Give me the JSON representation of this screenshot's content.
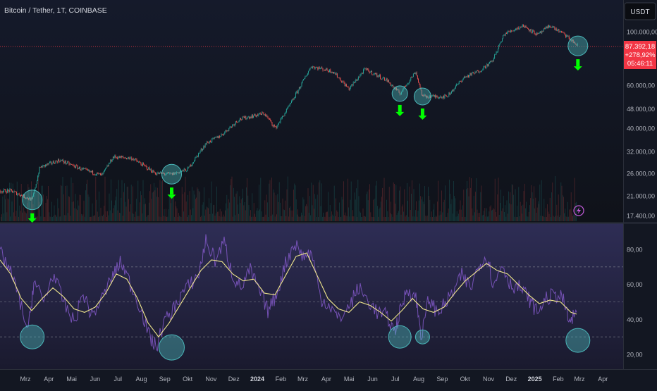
{
  "header": {
    "symbol_line": "Bitcoin / Tether, 1T, COINBASE",
    "currency_badge": "USDT"
  },
  "price_panel": {
    "y_ticks": [
      "100.000,00",
      "60.000,00",
      "48.000,00",
      "40.000,00",
      "32.000,00",
      "26.000,00",
      "21.000,00",
      "17.400,00"
    ],
    "last_price": "87.392,18",
    "change_pct": "+278,92%",
    "countdown": "05:46:11",
    "colors": {
      "up": "#26a69a",
      "down": "#ef5350",
      "price_line": "#f23645",
      "marker": "#00ff00",
      "circle": "#4fc3c4"
    }
  },
  "oscillator_panel": {
    "y_ticks": [
      "80,00",
      "60,00",
      "40,00",
      "20,00"
    ],
    "colors": {
      "fast": "#7e57c2",
      "slow": "#f0e68c",
      "circle": "#4fc3c4"
    }
  },
  "x_axis": {
    "labels": [
      "Mrz",
      "Apr",
      "Mai",
      "Jun",
      "Jul",
      "Aug",
      "Sep",
      "Okt",
      "Nov",
      "Dez",
      "2024",
      "Feb",
      "Mrz",
      "Apr",
      "Mai",
      "Jun",
      "Jul",
      "Aug",
      "Sep",
      "Okt",
      "Nov",
      "Dez",
      "2025",
      "Feb",
      "Mrz",
      "Apr"
    ],
    "bold_labels": [
      "2024",
      "2025"
    ]
  },
  "chart_data": [
    {
      "type": "line",
      "title": "Bitcoin / Tether, 1T, COINBASE",
      "x": [
        "2023-02-10",
        "2023-03-10",
        "2023-03-20",
        "2023-04-15",
        "2023-05-15",
        "2023-06-10",
        "2023-06-25",
        "2023-07-20",
        "2023-08-20",
        "2023-09-10",
        "2023-10-01",
        "2023-10-25",
        "2023-11-15",
        "2023-12-08",
        "2024-01-10",
        "2024-01-25",
        "2024-02-15",
        "2024-03-12",
        "2024-04-10",
        "2024-05-01",
        "2024-05-22",
        "2024-06-20",
        "2024-07-07",
        "2024-07-28",
        "2024-08-06",
        "2024-09-07",
        "2024-09-29",
        "2024-10-20",
        "2024-11-06",
        "2024-11-22",
        "2024-12-17",
        "2025-01-05",
        "2025-01-21",
        "2025-02-10",
        "2025-02-27"
      ],
      "series": [
        {
          "values": [
            22000,
            20200,
            27500,
            29500,
            27000,
            25500,
            30400,
            30000,
            26000,
            25800,
            27000,
            34500,
            37500,
            43500,
            46000,
            40000,
            51000,
            72000,
            68500,
            58000,
            70000,
            63000,
            55500,
            68500,
            54000,
            54000,
            64500,
            69000,
            75500,
            98000,
            106000,
            97000,
            106000,
            97000,
            87392
          ]
        }
      ],
      "ylim": [
        17400,
        112000
      ],
      "log_scale": true,
      "marked_lows": [
        "2023-03-10",
        "2023-09-10",
        "2024-07-07",
        "2024-08-06",
        "2025-02-27"
      ]
    },
    {
      "type": "line",
      "x_range": [
        "2023-02-01",
        "2025-04-15"
      ],
      "ylim": [
        12,
        92
      ],
      "reference_lines": [
        70,
        50,
        30
      ],
      "series": [
        {
          "values": [
            [
              0,
              78
            ],
            [
              12,
              70
            ],
            [
              25,
              55
            ],
            [
              40,
              33
            ],
            [
              48,
              62
            ],
            [
              62,
              50
            ],
            [
              75,
              66
            ],
            [
              90,
              50
            ],
            [
              105,
              38
            ],
            [
              118,
              55
            ],
            [
              130,
              42
            ],
            [
              145,
              52
            ],
            [
              160,
              65
            ],
            [
              172,
              73
            ],
            [
              185,
              60
            ],
            [
              198,
              48
            ],
            [
              212,
              30
            ],
            [
              222,
              24
            ],
            [
              232,
              38
            ],
            [
              245,
              45
            ],
            [
              258,
              55
            ],
            [
              270,
              60
            ],
            [
              282,
              66
            ],
            [
              292,
              85
            ],
            [
              305,
              74
            ],
            [
              318,
              84
            ],
            [
              330,
              65
            ],
            [
              342,
              58
            ],
            [
              355,
              68
            ],
            [
              368,
              56
            ],
            [
              380,
              45
            ],
            [
              392,
              54
            ],
            [
              405,
              72
            ],
            [
              418,
              84
            ],
            [
              430,
              76
            ],
            [
              442,
              78
            ],
            [
              455,
              52
            ],
            [
              468,
              48
            ],
            [
              480,
              40
            ],
            [
              495,
              47
            ],
            [
              508,
              58
            ],
            [
              520,
              52
            ],
            [
              535,
              44
            ],
            [
              548,
              42
            ],
            [
              560,
              33
            ],
            [
              568,
              45
            ],
            [
              578,
              58
            ],
            [
              590,
              52
            ],
            [
              598,
              30
            ],
            [
              608,
              52
            ],
            [
              620,
              44
            ],
            [
              630,
              48
            ],
            [
              642,
              55
            ],
            [
              655,
              65
            ],
            [
              668,
              58
            ],
            [
              680,
              72
            ],
            [
              692,
              76
            ],
            [
              700,
              58
            ],
            [
              712,
              72
            ],
            [
              724,
              60
            ],
            [
              738,
              58
            ],
            [
              750,
              52
            ],
            [
              762,
              44
            ],
            [
              775,
              52
            ],
            [
              788,
              54
            ],
            [
              798,
              52
            ],
            [
              808,
              38
            ],
            [
              818,
              44
            ]
          ]
        },
        {
          "values": [
            [
              0,
              74
            ],
            [
              15,
              66
            ],
            [
              30,
              52
            ],
            [
              45,
              45
            ],
            [
              60,
              52
            ],
            [
              75,
              58
            ],
            [
              90,
              53
            ],
            [
              105,
              46
            ],
            [
              120,
              44
            ],
            [
              135,
              47
            ],
            [
              150,
              55
            ],
            [
              165,
              66
            ],
            [
              180,
              63
            ],
            [
              195,
              52
            ],
            [
              210,
              38
            ],
            [
              225,
              30
            ],
            [
              240,
              38
            ],
            [
              255,
              48
            ],
            [
              270,
              58
            ],
            [
              285,
              68
            ],
            [
              300,
              74
            ],
            [
              315,
              73
            ],
            [
              330,
              66
            ],
            [
              345,
              62
            ],
            [
              360,
              63
            ],
            [
              375,
              55
            ],
            [
              390,
              54
            ],
            [
              405,
              65
            ],
            [
              420,
              76
            ],
            [
              435,
              78
            ],
            [
              450,
              65
            ],
            [
              465,
              52
            ],
            [
              480,
              46
            ],
            [
              495,
              44
            ],
            [
              510,
              50
            ],
            [
              525,
              48
            ],
            [
              540,
              44
            ],
            [
              555,
              39
            ],
            [
              570,
              45
            ],
            [
              585,
              52
            ],
            [
              600,
              46
            ],
            [
              615,
              44
            ],
            [
              630,
              47
            ],
            [
              645,
              55
            ],
            [
              660,
              62
            ],
            [
              675,
              67
            ],
            [
              690,
              72
            ],
            [
              705,
              68
            ],
            [
              720,
              66
            ],
            [
              735,
              60
            ],
            [
              750,
              54
            ],
            [
              765,
              49
            ],
            [
              780,
              51
            ],
            [
              795,
              50
            ],
            [
              810,
              44
            ],
            [
              818,
              43
            ]
          ]
        }
      ],
      "marked_lows": [
        "2023-03-10",
        "2023-09-10",
        "2024-07-07",
        "2024-08-06",
        "2025-02-27"
      ]
    }
  ]
}
